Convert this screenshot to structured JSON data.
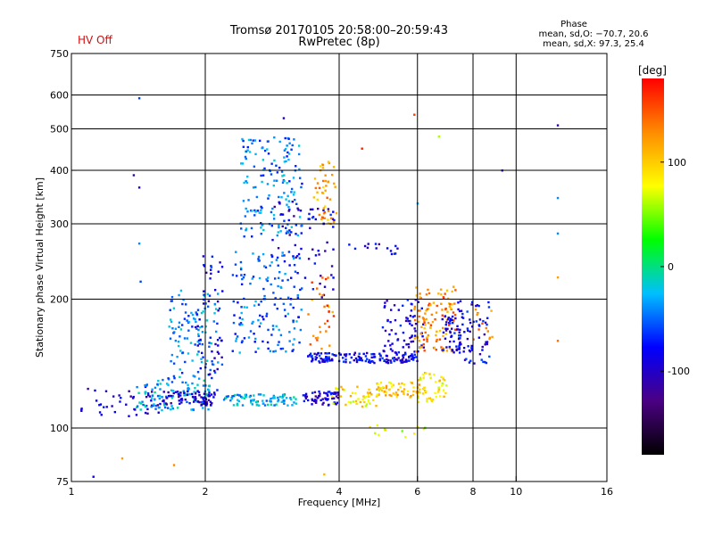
{
  "header": {
    "title_line1": "Tromsø 20170105 20:58:00–20:59:43",
    "title_line2": "RwPretec (8p)",
    "hv_status": "HV Off",
    "hv_color": "#d01010",
    "phase_stats": {
      "title": "Phase",
      "o_mode": "mean, sd,O: −70.7, 20.6",
      "x_mode": "mean, sd,X:  97.3, 25.4"
    }
  },
  "chart_data": {
    "type": "scatter",
    "xlabel": "Frequency [MHz]",
    "ylabel": "Stationary phase Virtual Height [km]",
    "xscale": "log",
    "yscale": "log",
    "xlim": [
      1,
      16
    ],
    "ylim": [
      75,
      750
    ],
    "x_ticks": [
      1,
      2,
      4,
      6,
      8,
      10,
      16
    ],
    "x_tick_labels": [
      "1",
      "2",
      "4",
      "6",
      "8",
      "10",
      "16"
    ],
    "x_grid": [
      2,
      4,
      6,
      8,
      10
    ],
    "y_ticks": [
      75,
      100,
      200,
      300,
      400,
      500,
      600,
      750
    ],
    "y_tick_labels": [
      "75",
      "100",
      "200",
      "300",
      "400",
      "500",
      "600",
      "750"
    ],
    "y_grid": [
      100,
      200,
      300,
      400,
      500,
      600
    ],
    "grid": true,
    "colorbar": {
      "label": "[deg]",
      "range": [
        -180,
        180
      ],
      "ticks": [
        100,
        0,
        -100
      ],
      "tick_labels": [
        "100",
        "0",
        "-100"
      ],
      "colors": [
        "#000000",
        "#4b0082",
        "#0000ff",
        "#00bfff",
        "#00ff00",
        "#ffff00",
        "#ff8c00",
        "#ff0000"
      ]
    },
    "clusters": [
      {
        "x": [
          1.05,
          1.6
        ],
        "y": [
          105,
          125
        ],
        "phase": -95,
        "n": 45
      },
      {
        "x": [
          1.4,
          2.05
        ],
        "y": [
          110,
          130
        ],
        "phase": -30,
        "n": 110
      },
      {
        "x": [
          1.6,
          2.1
        ],
        "y": [
          113,
          122
        ],
        "phase": -100,
        "n": 70
      },
      {
        "x": [
          1.65,
          2.15
        ],
        "y": [
          130,
          210
        ],
        "phase": -40,
        "n": 110
      },
      {
        "x": [
          1.9,
          2.2
        ],
        "y": [
          110,
          260
        ],
        "phase": -80,
        "n": 60
      },
      {
        "x": [
          2.2,
          3.2
        ],
        "y": [
          113,
          120
        ],
        "phase": -30,
        "n": 90
      },
      {
        "x": [
          2.3,
          3.3
        ],
        "y": [
          150,
          260
        ],
        "phase": -50,
        "n": 160
      },
      {
        "x": [
          2.4,
          3.3
        ],
        "y": [
          280,
          480
        ],
        "phase": -45,
        "n": 160
      },
      {
        "x": [
          2.8,
          3.3
        ],
        "y": [
          240,
          340
        ],
        "phase": -100,
        "n": 25
      },
      {
        "x": [
          3.3,
          4.0
        ],
        "y": [
          113,
          122
        ],
        "phase": -95,
        "n": 60
      },
      {
        "x": [
          3.35,
          3.9
        ],
        "y": [
          200,
          330
        ],
        "phase": -90,
        "n": 40
      },
      {
        "x": [
          3.5,
          3.95
        ],
        "y": [
          300,
          420
        ],
        "phase": 120,
        "n": 45
      },
      {
        "x": [
          3.4,
          3.9
        ],
        "y": [
          150,
          230
        ],
        "phase": 140,
        "n": 30
      },
      {
        "x": [
          3.4,
          6.0
        ],
        "y": [
          142,
          150
        ],
        "phase": -85,
        "n": 150
      },
      {
        "x": [
          3.8,
          5.0
        ],
        "y": [
          112,
          125
        ],
        "phase": 90,
        "n": 40
      },
      {
        "x": [
          4.6,
          6.1
        ],
        "y": [
          118,
          128
        ],
        "phase": 100,
        "n": 60
      },
      {
        "x": [
          5.0,
          6.2
        ],
        "y": [
          150,
          200
        ],
        "phase": -90,
        "n": 70
      },
      {
        "x": [
          5.9,
          7.3
        ],
        "y": [
          150,
          215
        ],
        "phase": 130,
        "n": 110
      },
      {
        "x": [
          6.0,
          7.0
        ],
        "y": [
          115,
          135
        ],
        "phase": 90,
        "n": 50
      },
      {
        "x": [
          6.8,
          7.5
        ],
        "y": [
          150,
          185
        ],
        "phase": -90,
        "n": 50
      },
      {
        "x": [
          7.4,
          8.7
        ],
        "y": [
          140,
          200
        ],
        "phase": -85,
        "n": 70
      },
      {
        "x": [
          8.0,
          9.0
        ],
        "y": [
          160,
          190
        ],
        "phase": 125,
        "n": 12
      },
      {
        "x": [
          4.1,
          5.5
        ],
        "y": [
          255,
          270
        ],
        "phase": -95,
        "n": 15
      },
      {
        "x": [
          4.6,
          6.6
        ],
        "y": [
          95,
          102
        ],
        "phase": 70,
        "n": 12
      }
    ],
    "scattered_points": [
      {
        "x": 1.42,
        "y": 590,
        "phase": -60
      },
      {
        "x": 1.38,
        "y": 390,
        "phase": -110
      },
      {
        "x": 1.42,
        "y": 365,
        "phase": -95
      },
      {
        "x": 1.42,
        "y": 270,
        "phase": -40
      },
      {
        "x": 1.43,
        "y": 220,
        "phase": -60
      },
      {
        "x": 1.3,
        "y": 85,
        "phase": 120
      },
      {
        "x": 1.7,
        "y": 82,
        "phase": 130
      },
      {
        "x": 1.12,
        "y": 77,
        "phase": -80
      },
      {
        "x": 3.0,
        "y": 530,
        "phase": -95
      },
      {
        "x": 5.9,
        "y": 540,
        "phase": 160
      },
      {
        "x": 6.7,
        "y": 480,
        "phase": 60
      },
      {
        "x": 9.3,
        "y": 400,
        "phase": -90
      },
      {
        "x": 12.4,
        "y": 510,
        "phase": -110
      },
      {
        "x": 12.4,
        "y": 345,
        "phase": -40
      },
      {
        "x": 12.4,
        "y": 285,
        "phase": -40
      },
      {
        "x": 12.4,
        "y": 225,
        "phase": 120
      },
      {
        "x": 12.4,
        "y": 160,
        "phase": 140
      },
      {
        "x": 6.0,
        "y": 335,
        "phase": -30
      },
      {
        "x": 3.7,
        "y": 78,
        "phase": 110
      },
      {
        "x": 4.5,
        "y": 450,
        "phase": 170
      }
    ]
  }
}
